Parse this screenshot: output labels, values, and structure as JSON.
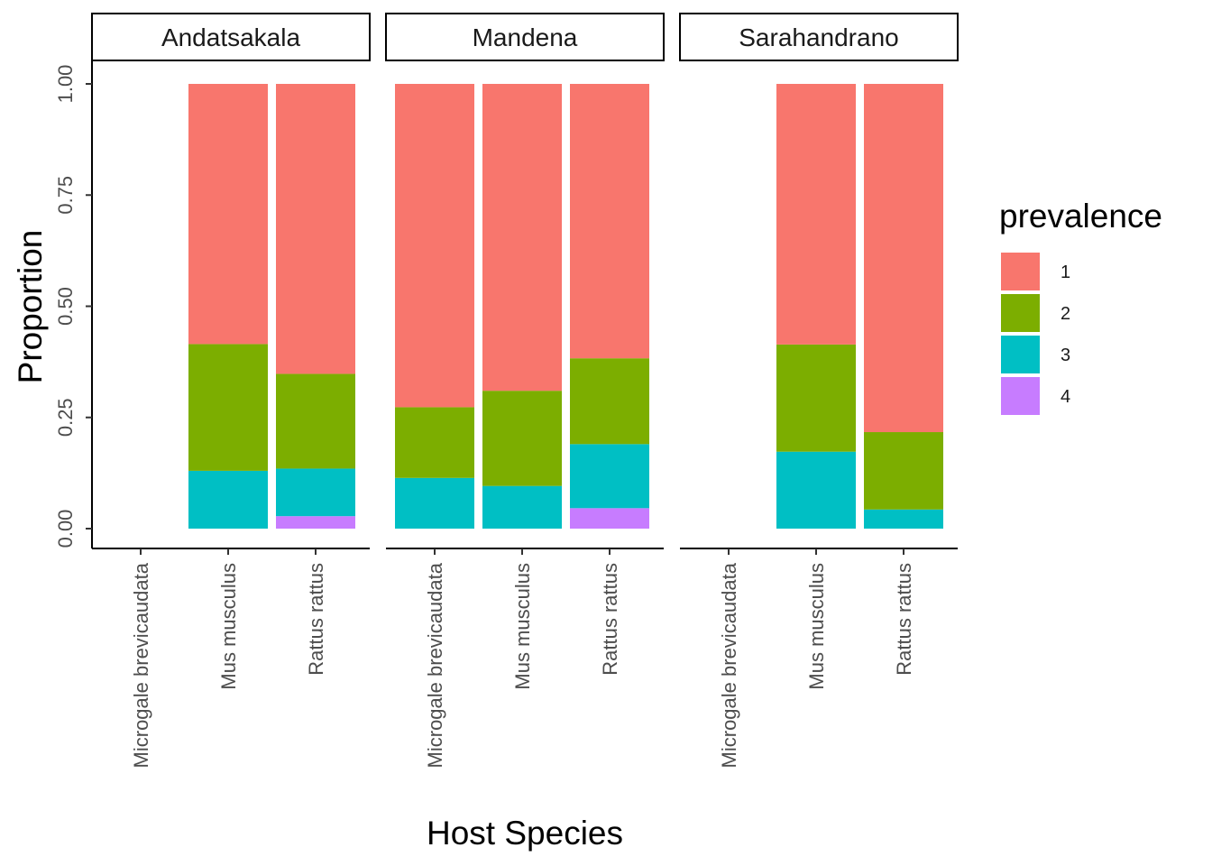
{
  "chart_data": {
    "type": "bar",
    "stacked": true,
    "xlabel": "Host Species",
    "ylabel": "Proportion",
    "ylim": [
      0,
      1
    ],
    "yticks": [
      "0.00",
      "0.25",
      "0.50",
      "0.75",
      "1.00"
    ],
    "facets": [
      "Andatsakala",
      "Mandena",
      "Sarahandrano"
    ],
    "categories": [
      "Microgale brevicaudata",
      "Mus musculus",
      "Rattus rattus"
    ],
    "legend": {
      "title": "prevalence",
      "position": "right",
      "entries": [
        {
          "label": "1",
          "color": "#F8766D"
        },
        {
          "label": "2",
          "color": "#7CAE00"
        },
        {
          "label": "3",
          "color": "#00BFC4"
        },
        {
          "label": "4",
          "color": "#C77CFF"
        }
      ]
    },
    "panels": [
      {
        "facet": "Andatsakala",
        "bars": [
          {
            "category": "Microgale brevicaudata",
            "values": {
              "1": 0,
              "2": 0,
              "3": 0,
              "4": 0
            }
          },
          {
            "category": "Mus musculus",
            "values": {
              "1": 0.585,
              "2": 0.285,
              "3": 0.13,
              "4": 0
            }
          },
          {
            "category": "Rattus rattus",
            "values": {
              "1": 0.652,
              "2": 0.213,
              "3": 0.107,
              "4": 0.028
            }
          }
        ]
      },
      {
        "facet": "Mandena",
        "bars": [
          {
            "category": "Microgale brevicaudata",
            "values": {
              "1": 0.727,
              "2": 0.159,
              "3": 0.114,
              "4": 0
            }
          },
          {
            "category": "Mus musculus",
            "values": {
              "1": 0.69,
              "2": 0.214,
              "3": 0.096,
              "4": 0
            }
          },
          {
            "category": "Rattus rattus",
            "values": {
              "1": 0.617,
              "2": 0.193,
              "3": 0.144,
              "4": 0.046
            }
          }
        ]
      },
      {
        "facet": "Sarahandrano",
        "bars": [
          {
            "category": "Microgale brevicaudata",
            "values": {
              "1": 0,
              "2": 0,
              "3": 0,
              "4": 0
            }
          },
          {
            "category": "Mus musculus",
            "values": {
              "1": 0.586,
              "2": 0.241,
              "3": 0.173,
              "4": 0
            }
          },
          {
            "category": "Rattus rattus",
            "values": {
              "1": 0.783,
              "2": 0.174,
              "3": 0.043,
              "4": 0
            }
          }
        ]
      }
    ]
  }
}
